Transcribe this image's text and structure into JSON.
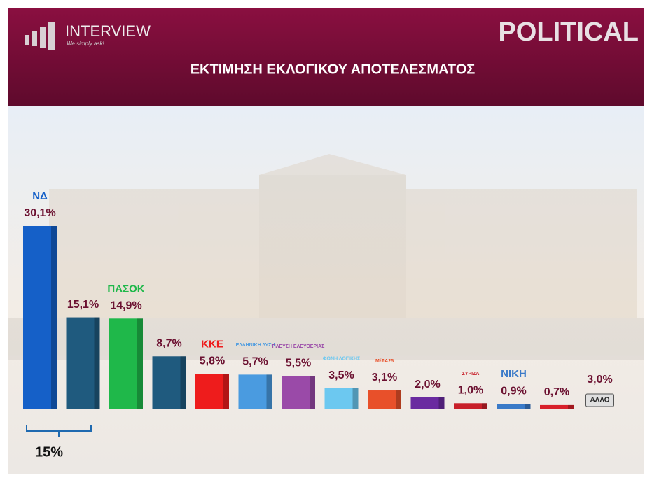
{
  "header": {
    "brand": "INTERVIEW",
    "tagline": "We simply ask!",
    "section": "POLITICAL"
  },
  "chart_data": {
    "type": "bar",
    "title": "ΕΚΤΙΜΗΣΗ ΕΚΛΟΓΙΚΟΥ ΑΠΟΤΕΛΕΣΜΑΤΟΣ",
    "categories": [
      "ΝΔ",
      null,
      "ΠΑΣΟΚ",
      null,
      "ΚΚΕ",
      "ΕΛΛΗΝΙΚΗ ΛΥΣΗ",
      "ΠΛΕΥΣΗ ΕΛΕΥΘΕΡΙΑΣ",
      "ΦΩΝΗ ΛΟΓΙΚΗΣ",
      "ΜέΡΑ25",
      null,
      "ΣΥΡΙΖΑ",
      "ΝΙΚΗ",
      null,
      "ΑΛΛΟ"
    ],
    "values": [
      30.1,
      15.1,
      14.9,
      8.7,
      5.8,
      5.7,
      5.5,
      3.5,
      3.1,
      2.0,
      1.0,
      0.9,
      0.7,
      3.0
    ],
    "value_labels": [
      "30,1%",
      "15,1%",
      "14,9%",
      "8,7%",
      "5,8%",
      "5,7%",
      "5,5%",
      "3,5%",
      "3,1%",
      "2,0%",
      "1,0%",
      "0,9%",
      "0,7%",
      "3,0%"
    ],
    "colors": [
      "#1560c8",
      "#1f5a7e",
      "#1fb84a",
      "#1f5a7e",
      "#ee1c1c",
      "#4a9be0",
      "#9a4aa8",
      "#6cc8f0",
      "#e8502a",
      "#6a2aa0",
      "#c8202a",
      "#3a7ac8",
      "#d8202a",
      "#e0e0e0"
    ],
    "annotation": "15%"
  }
}
